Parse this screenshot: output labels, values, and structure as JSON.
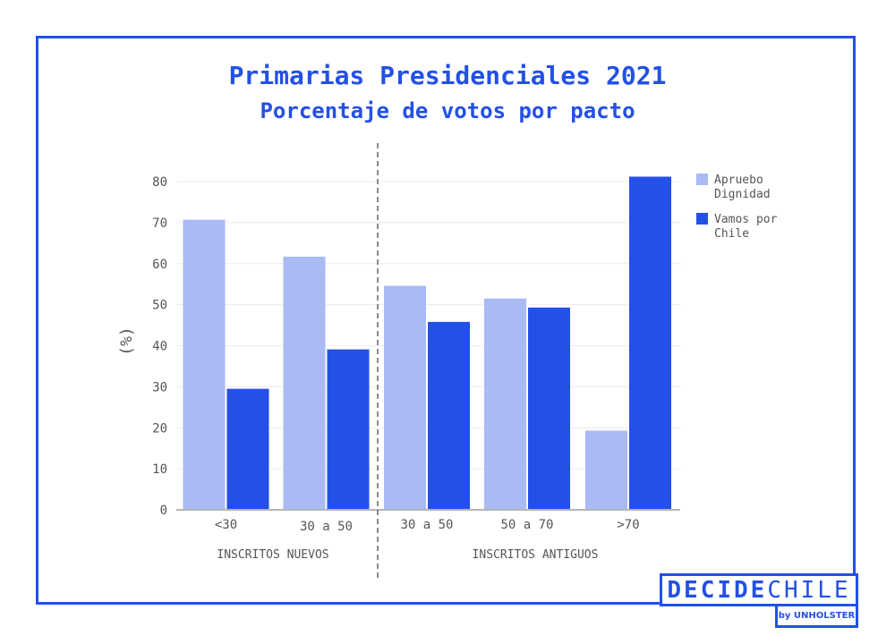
{
  "title": "Primarias Presidenciales 2021",
  "subtitle": "Porcentaje de votos por pacto",
  "logo": {
    "word1": "DECIDE",
    "word2": "CHILE",
    "by": "by UNHOLSTER"
  },
  "colors": {
    "accent": "#2350e6",
    "apruebo": "#a9baf5",
    "vamos": "#2350e6"
  },
  "chart_data": {
    "type": "bar",
    "title": "Primarias Presidenciales 2021",
    "subtitle": "Porcentaje de votos por pacto",
    "ylabel": "(%)",
    "ylim": [
      0,
      80
    ],
    "yticks": [
      0,
      10,
      20,
      30,
      40,
      50,
      60,
      70,
      80
    ],
    "grid": true,
    "legend": "right",
    "categories": [
      "<30",
      "30 a 50",
      "30 a 50",
      "50 a 70",
      ">70"
    ],
    "groups": [
      {
        "label": "INSCRITOS NUEVOS",
        "categories": [
          "<30",
          "30 a 50"
        ]
      },
      {
        "label": "INSCRITOS ANTIGUOS",
        "categories": [
          "30 a 50",
          "50 a 70",
          ">70"
        ]
      }
    ],
    "series": [
      {
        "name": "Apruebo Dignidad",
        "legend_lines": [
          "Apruebo",
          "Dignidad"
        ],
        "color": "#a9baf5",
        "values": [
          70.7,
          61.7,
          54.6,
          51.5,
          19.3
        ]
      },
      {
        "name": "Vamos por Chile",
        "legend_lines": [
          "Vamos por",
          "Chile"
        ],
        "color": "#2350e6",
        "values": [
          29.5,
          39.1,
          45.8,
          49.3,
          81.2
        ]
      }
    ]
  }
}
